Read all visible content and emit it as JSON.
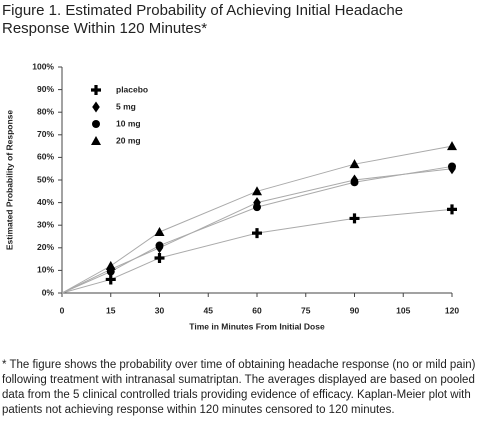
{
  "title": "Figure 1. Estimated Probability of Achieving Initial Headache Response Within 120 Minutes*",
  "footnote": "* The figure shows the probability over time of obtaining headache response (no or mild pain) following treatment with intranasal sumatriptan. The averages displayed are based on pooled data from the 5 clinical controlled trials providing evidence of efficacy. Kaplan-Meier plot with patients not achieving response within 120 minutes censored to 120 minutes.",
  "chart_data": {
    "type": "line",
    "x_label": "Time in Minutes From Initial Dose",
    "y_label": "Estimated Probability of Response",
    "x": [
      0,
      15,
      30,
      60,
      90,
      120
    ],
    "series": [
      {
        "name": "placebo",
        "color": "#000000",
        "marker": "plus",
        "values": [
          0,
          6,
          15.5,
          26.5,
          33,
          37
        ]
      },
      {
        "name": "5 mg",
        "color": "#000000",
        "marker": "diamond",
        "values": [
          0,
          10.5,
          20,
          40,
          50,
          55
        ]
      },
      {
        "name": "10 mg",
        "color": "#000000",
        "marker": "circle",
        "values": [
          0,
          9.5,
          21,
          38,
          49,
          56
        ]
      },
      {
        "name": "20 mg",
        "color": "#000000",
        "marker": "triangle",
        "values": [
          0,
          12,
          27,
          45,
          57,
          65
        ]
      }
    ],
    "xlim": [
      0,
      120
    ],
    "xticks": [
      0,
      15,
      30,
      45,
      60,
      75,
      90,
      105,
      120
    ],
    "ylim": [
      0,
      100
    ],
    "yticks": [
      {
        "value": 0,
        "label": "0%"
      },
      {
        "value": 10,
        "label": "10%"
      },
      {
        "value": 20,
        "label": "20%"
      },
      {
        "value": 30,
        "label": "30%"
      },
      {
        "value": 40,
        "label": "40%"
      },
      {
        "value": 50,
        "label": "50%"
      },
      {
        "value": 60,
        "label": "60%"
      },
      {
        "value": 70,
        "label": "70%"
      },
      {
        "value": 80,
        "label": "80%"
      },
      {
        "value": 90,
        "label": "90%"
      },
      {
        "value": 100,
        "label": "100%"
      }
    ],
    "legend": "upper left"
  }
}
